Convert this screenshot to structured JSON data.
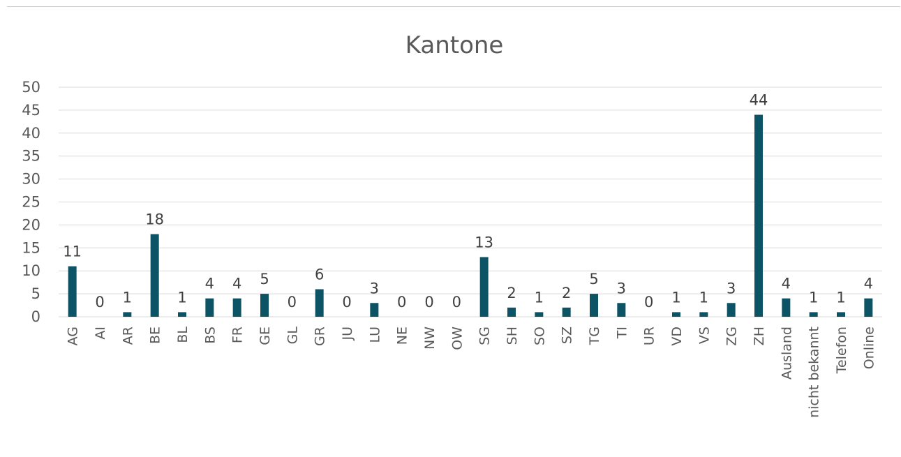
{
  "chart_data": {
    "type": "bar",
    "title": "Kantone",
    "xlabel": "",
    "ylabel": "",
    "ylim": [
      0,
      50
    ],
    "yticks": [
      0,
      5,
      10,
      15,
      20,
      25,
      30,
      35,
      40,
      45,
      50
    ],
    "grid": true,
    "legend": "none",
    "bar_color": "#0d5366",
    "categories": [
      "AG",
      "AI",
      "AR",
      "BE",
      "BL",
      "BS",
      "FR",
      "GE",
      "GL",
      "GR",
      "JU",
      "LU",
      "NE",
      "NW",
      "OW",
      "SG",
      "SH",
      "SO",
      "SZ",
      "TG",
      "TI",
      "UR",
      "VD",
      "VS",
      "ZG",
      "ZH",
      "Ausland",
      "nicht bekannt",
      "Telefon",
      "Online"
    ],
    "values": [
      11,
      0,
      1,
      18,
      1,
      4,
      4,
      5,
      0,
      6,
      0,
      3,
      0,
      0,
      0,
      13,
      2,
      1,
      2,
      5,
      3,
      0,
      1,
      1,
      3,
      44,
      4,
      1,
      1,
      4
    ]
  }
}
